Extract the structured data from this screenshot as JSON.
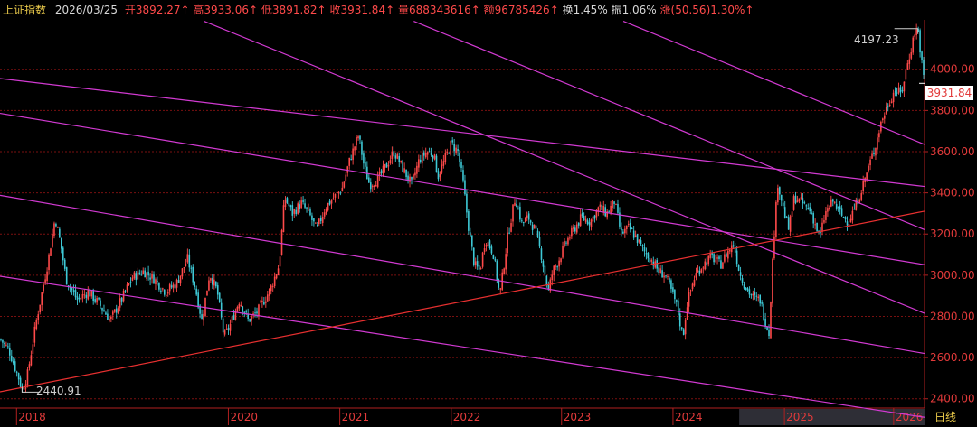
{
  "header": {
    "index_name": "上证指数",
    "date": "2026/03/25",
    "open_label": "开",
    "open_value": "3892.27↑",
    "high_label": "高",
    "high_value": "3933.06↑",
    "low_label": "低",
    "low_value": "3891.82↑",
    "close_label": "收",
    "close_value": "3931.84↑",
    "volume_label": "量",
    "volume_value": "688343616↑",
    "amount_label": "额",
    "amount_value": "96785426↑",
    "turnover_label": "换",
    "turnover_value": "1.45%",
    "amplitude_label": "振",
    "amplitude_value": "1.06%",
    "change_label": "涨",
    "change_value": "(50.56)1.30%↑"
  },
  "annotations": {
    "high_marker": "4197.23",
    "low_marker": "2440.91",
    "last_price": "3931.84"
  },
  "period_button": "日线",
  "colors": {
    "up": "#ff4a4a",
    "down": "#3ec9d6",
    "channel": "#d23ad2",
    "trendline": "#e83030",
    "grid": "#7a1010",
    "background": "#000000"
  },
  "chart_data": {
    "type": "candlestick",
    "x_tick_labels": [
      "2018",
      "2020",
      "2021",
      "2022",
      "2023",
      "2024",
      "2025",
      "2026"
    ],
    "x_tick_years": [
      2018.0,
      2019.92,
      2020.93,
      2021.94,
      2022.94,
      2023.95,
      2024.96,
      2025.95
    ],
    "x_range": [
      2017.85,
      2026.23
    ],
    "y_tick_labels": [
      "2400.00",
      "2600.00",
      "2800.00",
      "3000.00",
      "3200.00",
      "3400.00",
      "3600.00",
      "3800.00",
      "4000.00"
    ],
    "y_ticks": [
      2400,
      2600,
      2800,
      3000,
      3200,
      3400,
      3600,
      3800,
      4000
    ],
    "ylim": [
      2355,
      4240
    ],
    "grid": true,
    "close_path": [
      [
        2017.85,
        2690
      ],
      [
        2017.93,
        2640
      ],
      [
        2018.02,
        2500
      ],
      [
        2018.05,
        2440.91
      ],
      [
        2018.1,
        2520
      ],
      [
        2018.18,
        2780
      ],
      [
        2018.28,
        3050
      ],
      [
        2018.35,
        3280
      ],
      [
        2018.4,
        3150
      ],
      [
        2018.45,
        2980
      ],
      [
        2018.55,
        2880
      ],
      [
        2018.65,
        2920
      ],
      [
        2018.75,
        2860
      ],
      [
        2018.85,
        2780
      ],
      [
        2018.95,
        2880
      ],
      [
        2019.05,
        2990
      ],
      [
        2019.15,
        3020
      ],
      [
        2019.25,
        2980
      ],
      [
        2019.35,
        2920
      ],
      [
        2019.45,
        2960
      ],
      [
        2019.55,
        3080
      ],
      [
        2019.62,
        2940
      ],
      [
        2019.68,
        2780
      ],
      [
        2019.75,
        3010
      ],
      [
        2019.82,
        2920
      ],
      [
        2019.88,
        2700
      ],
      [
        2019.93,
        2750
      ],
      [
        2020.02,
        2880
      ],
      [
        2020.1,
        2780
      ],
      [
        2020.18,
        2820
      ],
      [
        2020.3,
        2930
      ],
      [
        2020.38,
        3050
      ],
      [
        2020.43,
        3380
      ],
      [
        2020.5,
        3300
      ],
      [
        2020.58,
        3350
      ],
      [
        2020.65,
        3300
      ],
      [
        2020.72,
        3220
      ],
      [
        2020.8,
        3330
      ],
      [
        2020.88,
        3380
      ],
      [
        2020.95,
        3420
      ],
      [
        2021.02,
        3560
      ],
      [
        2021.1,
        3680
      ],
      [
        2021.15,
        3530
      ],
      [
        2021.2,
        3440
      ],
      [
        2021.28,
        3470
      ],
      [
        2021.35,
        3530
      ],
      [
        2021.42,
        3600
      ],
      [
        2021.5,
        3520
      ],
      [
        2021.58,
        3440
      ],
      [
        2021.65,
        3560
      ],
      [
        2021.72,
        3600
      ],
      [
        2021.78,
        3590
      ],
      [
        2021.82,
        3480
      ],
      [
        2021.88,
        3560
      ],
      [
        2021.94,
        3640
      ],
      [
        2022.0,
        3600
      ],
      [
        2022.05,
        3440
      ],
      [
        2022.1,
        3220
      ],
      [
        2022.15,
        3050
      ],
      [
        2022.2,
        3020
      ],
      [
        2022.25,
        3180
      ],
      [
        2022.32,
        3110
      ],
      [
        2022.38,
        2900
      ],
      [
        2022.42,
        3060
      ],
      [
        2022.45,
        3180
      ],
      [
        2022.52,
        3380
      ],
      [
        2022.58,
        3250
      ],
      [
        2022.64,
        3280
      ],
      [
        2022.7,
        3220
      ],
      [
        2022.76,
        3090
      ],
      [
        2022.82,
        2920
      ],
      [
        2022.86,
        3020
      ],
      [
        2022.92,
        3080
      ],
      [
        2022.98,
        3160
      ],
      [
        2023.05,
        3220
      ],
      [
        2023.12,
        3280
      ],
      [
        2023.2,
        3260
      ],
      [
        2023.28,
        3330
      ],
      [
        2023.35,
        3300
      ],
      [
        2023.42,
        3360
      ],
      [
        2023.48,
        3200
      ],
      [
        2023.55,
        3230
      ],
      [
        2023.62,
        3180
      ],
      [
        2023.68,
        3120
      ],
      [
        2023.75,
        3080
      ],
      [
        2023.82,
        3020
      ],
      [
        2023.88,
        3000
      ],
      [
        2023.93,
        2930
      ],
      [
        2023.98,
        2860
      ],
      [
        2024.04,
        2700
      ],
      [
        2024.08,
        2870
      ],
      [
        2024.15,
        3000
      ],
      [
        2024.22,
        3050
      ],
      [
        2024.3,
        3090
      ],
      [
        2024.38,
        3050
      ],
      [
        2024.44,
        3110
      ],
      [
        2024.5,
        3150
      ],
      [
        2024.56,
        3000
      ],
      [
        2024.62,
        2930
      ],
      [
        2024.68,
        2890
      ],
      [
        2024.74,
        2880
      ],
      [
        2024.78,
        2790
      ],
      [
        2024.82,
        2720
      ],
      [
        2024.86,
        3150
      ],
      [
        2024.9,
        3450
      ],
      [
        2024.96,
        3300
      ],
      [
        2025.0,
        3220
      ],
      [
        2025.05,
        3380
      ],
      [
        2025.12,
        3350
      ],
      [
        2025.2,
        3310
      ],
      [
        2025.28,
        3180
      ],
      [
        2025.33,
        3300
      ],
      [
        2025.4,
        3360
      ],
      [
        2025.48,
        3290
      ],
      [
        2025.54,
        3260
      ],
      [
        2025.6,
        3330
      ],
      [
        2025.66,
        3420
      ],
      [
        2025.72,
        3520
      ],
      [
        2025.78,
        3620
      ],
      [
        2025.84,
        3750
      ],
      [
        2025.9,
        3830
      ],
      [
        2025.96,
        3900
      ],
      [
        2026.02,
        3880
      ],
      [
        2026.06,
        3990
      ],
      [
        2026.1,
        4080
      ],
      [
        2026.14,
        4180
      ],
      [
        2026.17,
        4197.23
      ],
      [
        2026.2,
        4050
      ],
      [
        2026.23,
        3931.84
      ]
    ],
    "trendline": [
      [
        2017.85,
        2434
      ],
      [
        2026.23,
        3311
      ]
    ],
    "channel_lines": [
      [
        [
          2017.85,
          3955
        ],
        [
          2026.23,
          3431
        ]
      ],
      [
        [
          2017.85,
          3786
        ],
        [
          2026.23,
          3051
        ]
      ],
      [
        [
          2017.85,
          3388
        ],
        [
          2026.23,
          2620
        ]
      ],
      [
        [
          2017.85,
          2995
        ],
        [
          2026.23,
          2310
        ]
      ],
      [
        [
          2019.7,
          4233
        ],
        [
          2026.23,
          2815
        ]
      ],
      [
        [
          2021.6,
          4233
        ],
        [
          2026.23,
          3221
        ]
      ],
      [
        [
          2023.5,
          4233
        ],
        [
          2026.23,
          3635
        ]
      ]
    ],
    "annotations_data": [
      {
        "label": "4197.23",
        "x": 2026.17,
        "y": 4197.23
      },
      {
        "label": "2440.91",
        "x": 2018.05,
        "y": 2440.91
      }
    ]
  }
}
